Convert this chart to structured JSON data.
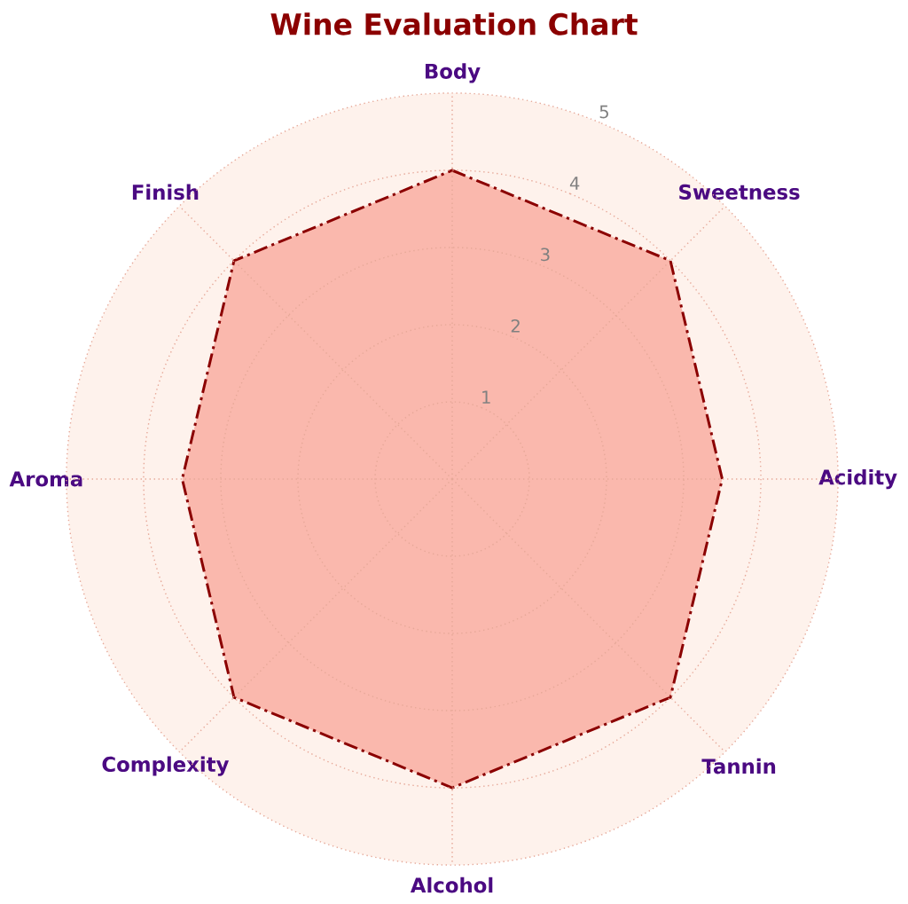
{
  "chart_data": {
    "type": "radar",
    "title": "Wine Evaluation Chart",
    "categories": [
      "Body",
      "Sweetness",
      "Acidity",
      "Tannin",
      "Alcohol",
      "Complexity",
      "Aroma",
      "Finish"
    ],
    "series": [
      {
        "color": "#8b0000",
        "values": [
          4,
          4,
          3.5,
          4,
          4,
          4,
          3.5,
          4
        ]
      }
    ],
    "ylim": [
      0,
      5
    ],
    "yticks": [
      1,
      2,
      3,
      4,
      5
    ],
    "grid": true,
    "line_style": "dashdot"
  }
}
